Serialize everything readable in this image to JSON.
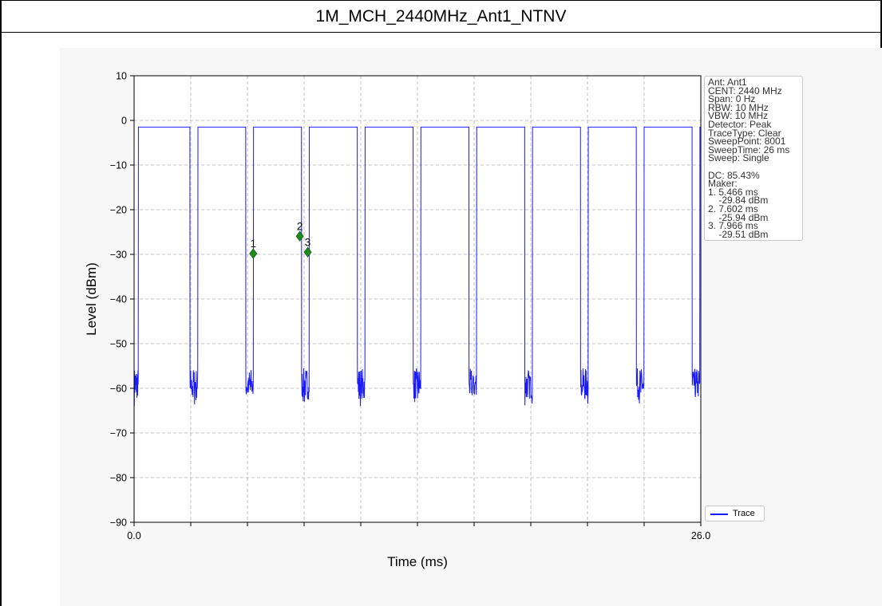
{
  "title": "1M_MCH_2440MHz_Ant1_NTNV",
  "chart_data": {
    "type": "line",
    "xlabel": "Time (ms)",
    "ylabel": "Level (dBm)",
    "xlim": [
      0.0,
      26.0
    ],
    "ylim": [
      -90,
      10
    ],
    "x_tick_labels": [
      "0.0",
      "26.0"
    ],
    "x_minor_ticks": [
      2.6,
      5.2,
      7.8,
      10.4,
      13.0,
      15.6,
      18.2,
      20.8,
      23.4
    ],
    "y_ticks": [
      10,
      0,
      -10,
      -20,
      -30,
      -40,
      -50,
      -60,
      -70,
      -80,
      -90
    ],
    "y_tick_labels": [
      "10",
      "0",
      "−10",
      "−20",
      "−30",
      "−40",
      "−50",
      "−60",
      "−70",
      "−80",
      "−90"
    ],
    "grid": true,
    "series": [
      {
        "name": "Trace",
        "color": "#1a1aff",
        "high_level": -1.5,
        "low_level": -59,
        "off_intervals_ms": [
          [
            0.0,
            0.2
          ],
          [
            2.56,
            2.93
          ],
          [
            5.12,
            5.48
          ],
          [
            7.68,
            8.04
          ],
          [
            10.24,
            10.6
          ],
          [
            12.8,
            13.16
          ],
          [
            15.36,
            15.72
          ],
          [
            17.92,
            18.28
          ],
          [
            20.48,
            20.84
          ],
          [
            23.04,
            23.4
          ],
          [
            25.6,
            25.96
          ]
        ]
      }
    ],
    "markers": [
      {
        "label": "1",
        "x": 5.466,
        "y": -29.84,
        "color": "#1f8b1f"
      },
      {
        "label": "2",
        "x": 7.602,
        "y": -25.94,
        "color": "#1f8b1f"
      },
      {
        "label": "3",
        "x": 7.966,
        "y": -29.51,
        "color": "#1f8b1f"
      }
    ],
    "legend": "lower-right",
    "info_lines": [
      "Ant: Ant1",
      "CENT: 2440 MHz",
      "Span: 0 Hz",
      "RBW: 10 MHz",
      "VBW: 10 MHz",
      "Detector: Peak",
      "TraceType: Clear",
      "SweepPoint: 8001",
      "SweepTime: 26 ms",
      "Sweep: Single",
      "",
      "DC: 85.43%",
      "Maker:",
      "1. 5.466 ms",
      "    -29.84 dBm",
      "2. 7.602 ms",
      "    -25.94 dBm",
      "3. 7.966 ms",
      "    -29.51 dBm"
    ]
  }
}
